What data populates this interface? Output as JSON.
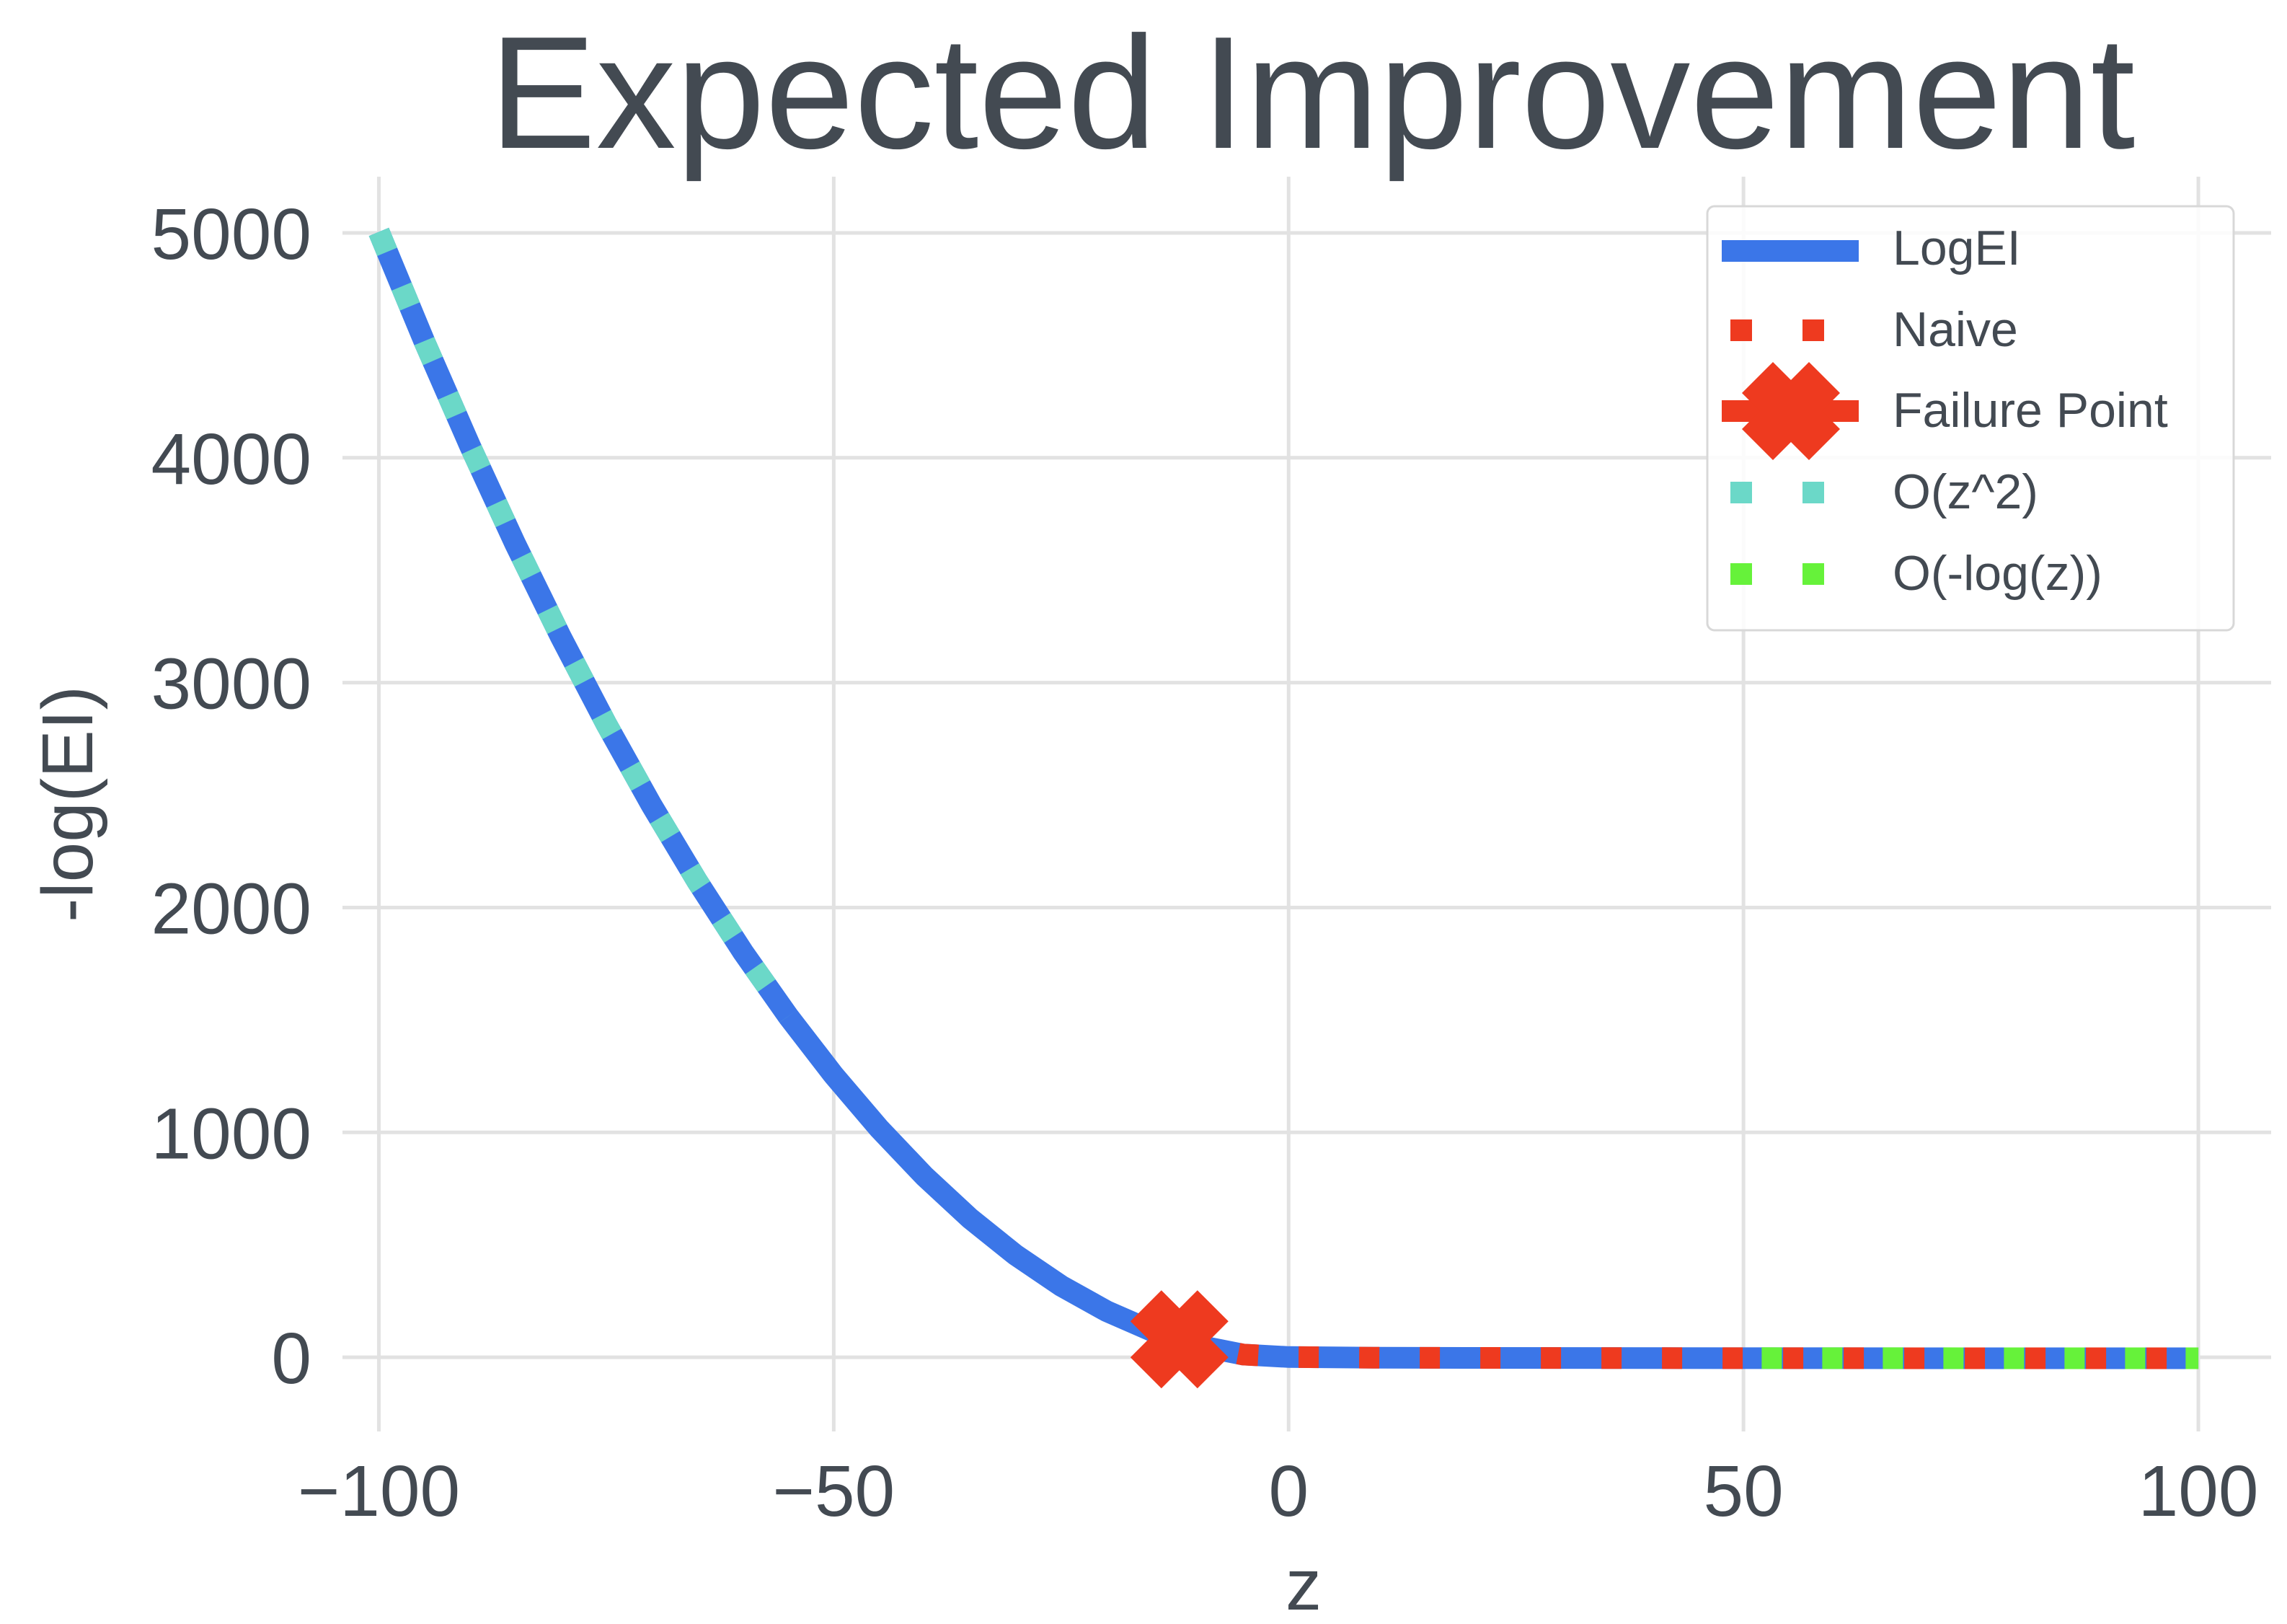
{
  "chart_data": {
    "type": "line",
    "title": "Expected Improvement",
    "xlabel": "z",
    "ylabel": "-log(EI)",
    "xlim": [
      -104,
      108
    ],
    "ylim": [
      -330,
      5250
    ],
    "xticks": [
      -100,
      -50,
      0,
      50,
      100
    ],
    "xtick_labels": [
      "−100",
      "−50",
      "0",
      "50",
      "100"
    ],
    "yticks": [
      0,
      1000,
      2000,
      3000,
      4000,
      5000
    ],
    "ytick_labels": [
      "0",
      "1000",
      "2000",
      "3000",
      "4000",
      "5000"
    ],
    "grid": true,
    "legend_position": "top-right",
    "series": [
      {
        "name": "LogEI",
        "color": "#3b76e8",
        "style": "solid",
        "x": [
          -100,
          -95,
          -90,
          -85,
          -80,
          -75,
          -70,
          -65,
          -60,
          -55,
          -50,
          -45,
          -40,
          -35,
          -30,
          -25,
          -20,
          -15,
          -10,
          -5,
          0,
          10,
          20,
          40,
          60,
          80,
          100
        ],
        "y": [
          5004.6,
          4516.8,
          4054.1,
          3616.4,
          3203.8,
          2816.2,
          2453.6,
          2116.1,
          1803.7,
          1516.3,
          1253.9,
          1016.6,
          804.3,
          617.0,
          454.7,
          317.4,
          205.0,
          116.7,
          52.2,
          12.1,
          0.9,
          -2.3,
          -3.0,
          -3.7,
          -4.1,
          -4.4,
          -4.6
        ]
      },
      {
        "name": "Naive",
        "color": "#ee3a1f",
        "style": "dotted",
        "x": [
          -12,
          -10,
          -5,
          0,
          10,
          20,
          40,
          60,
          80,
          100
        ],
        "y": [
          79.1,
          52.2,
          12.1,
          0.9,
          -2.3,
          -3.0,
          -3.7,
          -4.1,
          -4.4,
          -4.6
        ]
      },
      {
        "name": "Failure Point",
        "color": "#ee3a1f",
        "marker": "X",
        "x": [
          -12
        ],
        "y": [
          80
        ]
      },
      {
        "name": "O(z^2)",
        "color": "#6bd8c8",
        "style": "dotted",
        "x": [
          -100,
          -95,
          -90,
          -85,
          -80,
          -75,
          -70,
          -65,
          -60,
          -55
        ],
        "y": [
          5004.6,
          4516.8,
          4054.1,
          3616.4,
          3203.8,
          2816.2,
          2453.6,
          2116.1,
          1803.7,
          1516.3
        ]
      },
      {
        "name": "O(-log(z))",
        "color": "#66f23a",
        "style": "dotted",
        "x": [
          52,
          60,
          70,
          80,
          90,
          100
        ],
        "y": [
          -4.0,
          -4.1,
          -4.2,
          -4.4,
          -4.5,
          -4.6
        ]
      }
    ]
  }
}
